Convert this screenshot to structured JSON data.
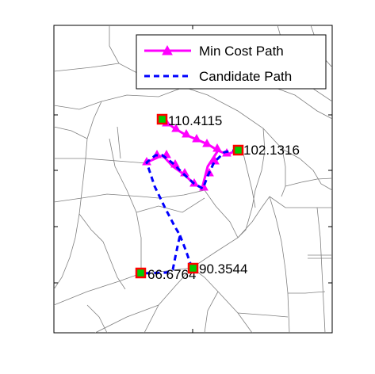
{
  "legend": {
    "min_cost_label": "Min Cost Path",
    "candidate_label": "Candidate Path"
  },
  "colors": {
    "min_cost": "#ff00ff",
    "candidate": "#0000ff",
    "marker_fill": "#00cc00",
    "marker_edge": "#ff0000",
    "road": "#808080"
  },
  "points": [
    {
      "id": "p1",
      "label": "110.4115"
    },
    {
      "id": "p2",
      "label": "102.1316"
    },
    {
      "id": "p3",
      "label": "90.3544"
    },
    {
      "id": "p4",
      "label": "66.6764"
    }
  ]
}
